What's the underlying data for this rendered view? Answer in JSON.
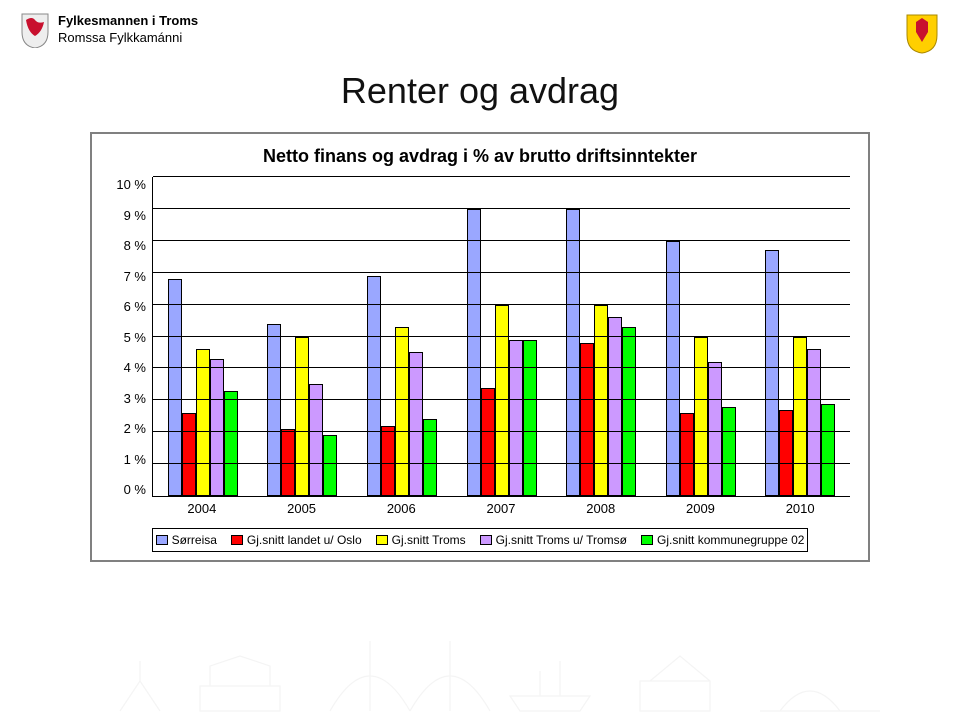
{
  "header": {
    "line1": "Fylkesmannen i Troms",
    "line2": "Romssa Fylkkamánni"
  },
  "title": "Renter og avdrag",
  "chart": {
    "type": "bar",
    "subtitle": "Netto finans og avdrag i % av brutto driftsinntekter",
    "ylim": [
      0,
      10
    ],
    "ytick_step": 1,
    "ytick_suffix": " %",
    "yticks": [
      "10 %",
      "9 %",
      "8 %",
      "7 %",
      "6 %",
      "5 %",
      "4 %",
      "3 %",
      "2 %",
      "1 %",
      "0 %"
    ],
    "categories": [
      "2004",
      "2005",
      "2006",
      "2007",
      "2008",
      "2009",
      "2010"
    ],
    "series": [
      {
        "name": "Sørreisa",
        "color": "#9aa7ff",
        "values": [
          6.8,
          5.4,
          6.9,
          9.0,
          9.0,
          8.0,
          7.7
        ]
      },
      {
        "name": "Gj.snitt landet u/ Oslo",
        "color": "#ff0000",
        "values": [
          2.6,
          2.1,
          2.2,
          3.4,
          4.8,
          2.6,
          2.7
        ]
      },
      {
        "name": "Gj.snitt Troms",
        "color": "#ffff00",
        "values": [
          4.6,
          5.0,
          5.3,
          6.0,
          6.0,
          5.0,
          5.0
        ]
      },
      {
        "name": "Gj.snitt Troms u/ Tromsø",
        "color": "#cc99ff",
        "values": [
          4.3,
          3.5,
          4.5,
          4.9,
          5.6,
          4.2,
          4.6
        ]
      },
      {
        "name": "Gj.snitt kommunegruppe 02",
        "color": "#00ff00",
        "values": [
          3.3,
          1.9,
          2.4,
          4.9,
          5.3,
          2.8,
          2.9
        ]
      }
    ],
    "grid_color": "#000000",
    "background_color": "#ffffff",
    "bar_border": "#000000",
    "title_fontsize": 36,
    "subtitle_fontsize": 18,
    "label_fontsize": 13,
    "legend_fontsize": 12
  },
  "crest_left_colors": {
    "shield": "#d4af37",
    "lion": "#c8102e"
  },
  "crest_right_colors": {
    "shield": "#ffcf00",
    "figure": "#c8102e"
  }
}
